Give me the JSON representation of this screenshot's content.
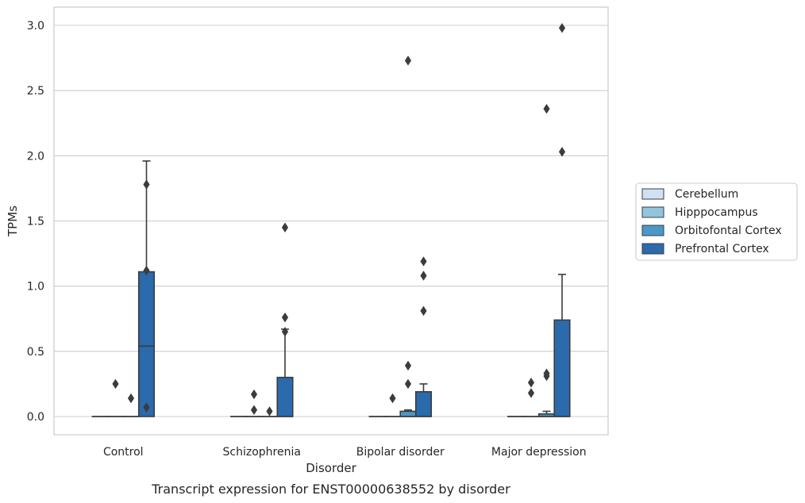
{
  "chart_data": {
    "type": "box",
    "title": "",
    "caption": "Transcript expression for ENST00000638552 by disorder",
    "xlabel": "Disorder",
    "ylabel": "TPMs",
    "ylim": [
      -0.14,
      3.14
    ],
    "yticks": [
      "0.0",
      "0.5",
      "1.0",
      "1.5",
      "2.0",
      "2.5",
      "3.0"
    ],
    "ytick_values": [
      0,
      0.5,
      1.0,
      1.5,
      2.0,
      2.5,
      3.0
    ],
    "grid": "horizontal",
    "legend_position": "right",
    "categories": [
      "Control",
      "Schizophrenia",
      "Bipolar disorder",
      "Major depression"
    ],
    "series": [
      {
        "name": "Cerebellum",
        "color": "#cfe1f2",
        "boxes": [
          {
            "q1": 0,
            "median": 0,
            "q3": 0,
            "whisker_low": 0,
            "whisker_high": 0,
            "outliers": []
          },
          {
            "q1": 0,
            "median": 0,
            "q3": 0,
            "whisker_low": 0,
            "whisker_high": 0,
            "outliers": []
          },
          {
            "q1": 0,
            "median": 0,
            "q3": 0,
            "whisker_low": 0,
            "whisker_high": 0,
            "outliers": []
          },
          {
            "q1": 0,
            "median": 0,
            "q3": 0,
            "whisker_low": 0,
            "whisker_high": 0,
            "outliers": []
          }
        ]
      },
      {
        "name": "Hipppocampus",
        "color": "#93c4de",
        "boxes": [
          {
            "q1": 0,
            "median": 0,
            "q3": 0,
            "whisker_low": 0,
            "whisker_high": 0,
            "outliers": [
              0.25
            ]
          },
          {
            "q1": 0,
            "median": 0,
            "q3": 0,
            "whisker_low": 0,
            "whisker_high": 0,
            "outliers": [
              0.17,
              0.05
            ]
          },
          {
            "q1": 0,
            "median": 0,
            "q3": 0,
            "whisker_low": 0,
            "whisker_high": 0,
            "outliers": [
              0.14
            ]
          },
          {
            "q1": 0,
            "median": 0,
            "q3": 0,
            "whisker_low": 0,
            "whisker_high": 0,
            "outliers": [
              0.26,
              0.18
            ]
          }
        ]
      },
      {
        "name": "Orbitofontal Cortex",
        "color": "#4a98c9",
        "boxes": [
          {
            "q1": 0,
            "median": 0,
            "q3": 0,
            "whisker_low": 0,
            "whisker_high": 0,
            "outliers": [
              0.14
            ]
          },
          {
            "q1": 0,
            "median": 0,
            "q3": 0,
            "whisker_low": 0,
            "whisker_high": 0,
            "outliers": [
              0.04
            ]
          },
          {
            "q1": 0,
            "median": 0,
            "q3": 0.04,
            "whisker_low": 0,
            "whisker_high": 0.05,
            "outliers": [
              2.73,
              0.39,
              0.25
            ]
          },
          {
            "q1": 0,
            "median": 0,
            "q3": 0.02,
            "whisker_low": 0,
            "whisker_high": 0.04,
            "outliers": [
              2.36,
              0.33,
              0.31
            ]
          }
        ]
      },
      {
        "name": "Prefrontal Cortex",
        "color": "#2a6aad",
        "boxes": [
          {
            "q1": 0,
            "median": 0.54,
            "q3": 1.11,
            "whisker_low": 0,
            "whisker_high": 1.96,
            "outliers": [
              1.78,
              1.12,
              0.07
            ]
          },
          {
            "q1": 0,
            "median": 0,
            "q3": 0.3,
            "whisker_low": 0,
            "whisker_high": 0.67,
            "outliers": [
              1.45,
              0.76,
              0.65
            ]
          },
          {
            "q1": 0,
            "median": 0,
            "q3": 0.19,
            "whisker_low": 0,
            "whisker_high": 0.25,
            "outliers": [
              1.19,
              1.08,
              0.81
            ]
          },
          {
            "q1": 0,
            "median": 0,
            "q3": 0.74,
            "whisker_low": 0,
            "whisker_high": 1.09,
            "outliers": [
              2.98,
              2.03
            ]
          }
        ]
      }
    ]
  }
}
